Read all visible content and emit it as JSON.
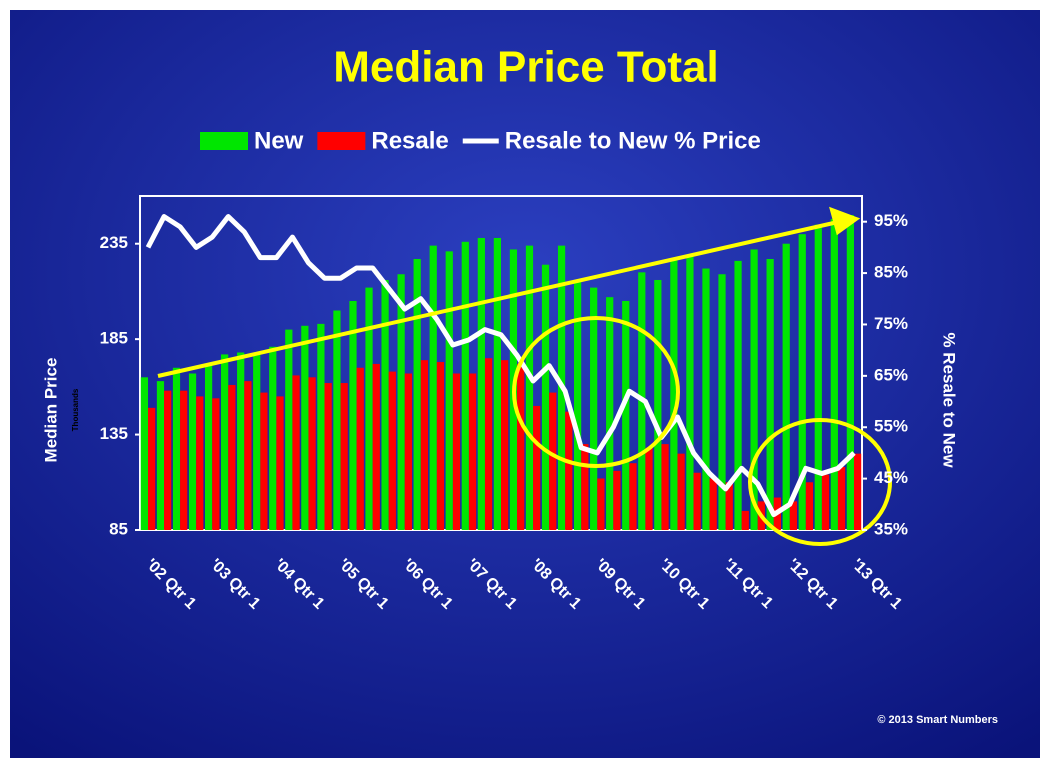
{
  "chart_data": {
    "type": "bar-line",
    "title": "Median Price Total",
    "y_label": "Median Price",
    "y_unit_label": "Thousands",
    "y2_label": "% Resale to New",
    "footer": "© 2013 Smart Numbers",
    "categories": [
      "'02 Qtr 1",
      null,
      null,
      null,
      "'03 Qtr 1",
      null,
      null,
      null,
      "'04 Qtr 1",
      null,
      null,
      null,
      "'05 Qtr 1",
      null,
      null,
      null,
      "'06 Qtr 1",
      null,
      null,
      null,
      "'07 Qtr 1",
      null,
      null,
      null,
      "'08 Qtr 1",
      null,
      null,
      null,
      "'09 Qtr 1",
      null,
      null,
      null,
      "'10 Qtr 1",
      null,
      null,
      null,
      "'11 Qtr 1",
      null,
      null,
      null,
      "'12 Qtr 1",
      null,
      null,
      null,
      "'13 Qtr 1"
    ],
    "series": [
      {
        "name": "New",
        "type": "bar",
        "color": "#00e600",
        "values": [
          165,
          163,
          170,
          167,
          172,
          177,
          178,
          177,
          181,
          190,
          192,
          193,
          200,
          205,
          212,
          216,
          219,
          227,
          234,
          231,
          236,
          238,
          238,
          232,
          234,
          224,
          234,
          215,
          212,
          207,
          205,
          220,
          216,
          227,
          229,
          222,
          219,
          226,
          232,
          227,
          235,
          240,
          245,
          248,
          250
        ]
      },
      {
        "name": "Resale",
        "type": "bar",
        "color": "#ff0000",
        "values": [
          149,
          158,
          158,
          155,
          154,
          161,
          163,
          157,
          155,
          166,
          165,
          162,
          162,
          170,
          172,
          168,
          167,
          174,
          173,
          167,
          167,
          175,
          174,
          172,
          150,
          157,
          147,
          130,
          112,
          116,
          120,
          128,
          130,
          125,
          115,
          112,
          110,
          95,
          100,
          102,
          100,
          110,
          114,
          118,
          125
        ]
      },
      {
        "name": "Resale to New % Price",
        "type": "line",
        "axis": "y2",
        "color": "#ffffff",
        "values": [
          90,
          96,
          94,
          90,
          92,
          96,
          93,
          88,
          88,
          92,
          87,
          84,
          84,
          86,
          86,
          82,
          78,
          80,
          76,
          71,
          72,
          74,
          73,
          69,
          64,
          67,
          62,
          51,
          50,
          55,
          62,
          60,
          53,
          57,
          50,
          46,
          43,
          47,
          44,
          38,
          40,
          47,
          46,
          47,
          50
        ]
      }
    ],
    "ylim": [
      85,
      260
    ],
    "yticks": [
      85,
      135,
      185,
      235
    ],
    "y2lim": [
      35,
      100
    ],
    "y2ticks": [
      {
        "value": 35,
        "label": "35%"
      },
      {
        "value": 45,
        "label": "45%"
      },
      {
        "value": 55,
        "label": "55%"
      },
      {
        "value": 65,
        "label": "65%"
      },
      {
        "value": 75,
        "label": "75%"
      },
      {
        "value": 85,
        "label": "85%"
      },
      {
        "value": 95,
        "label": "95%"
      }
    ],
    "grid": false
  }
}
